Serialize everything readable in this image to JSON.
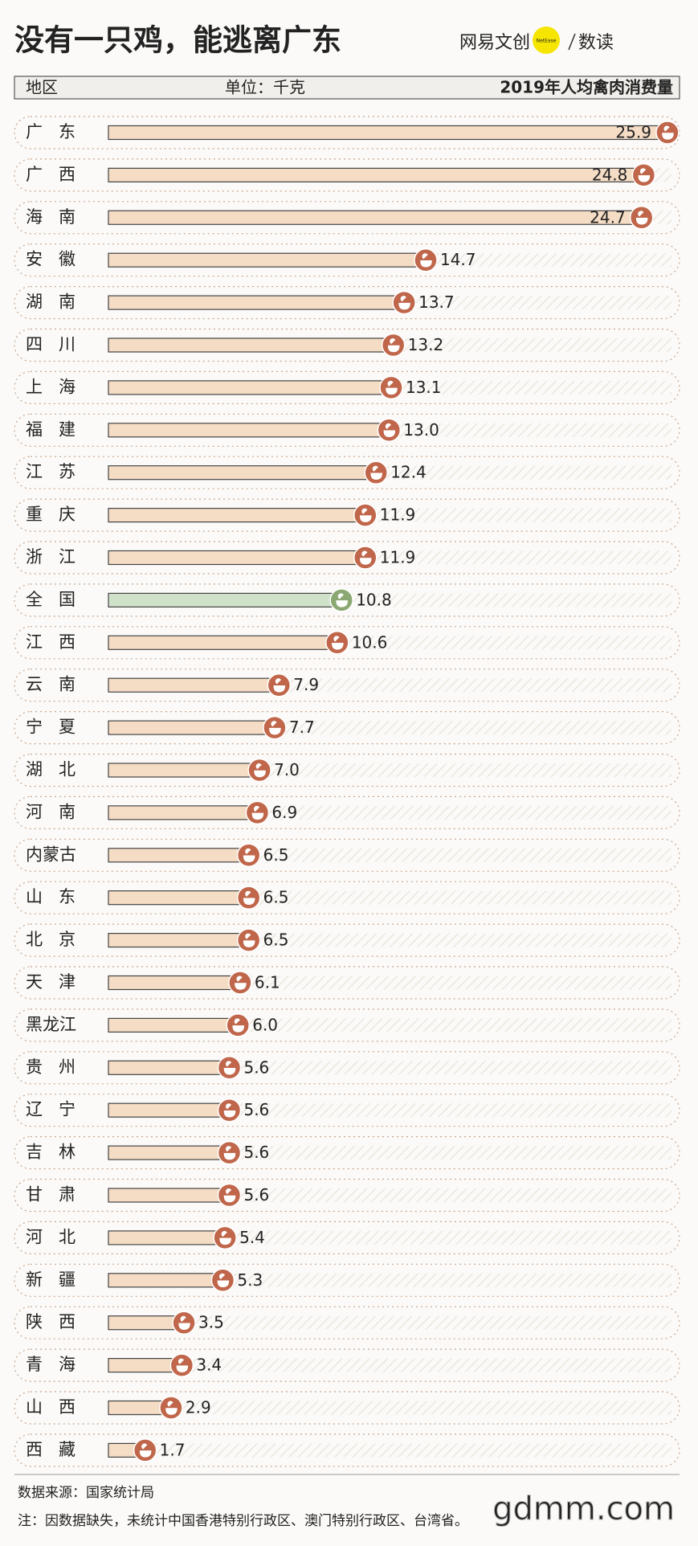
{
  "chart_data": {
    "type": "bar",
    "orientation": "horizontal",
    "title": "没有一只鸡，能逃离广东",
    "category_header": "地区",
    "unit": "单位：千克",
    "value_header": "2019年人均禽肉消费量",
    "categories": [
      "广东",
      "广西",
      "海南",
      "安徽",
      "湖南",
      "四川",
      "上海",
      "福建",
      "江苏",
      "重庆",
      "浙江",
      "全国",
      "江西",
      "云南",
      "宁夏",
      "湖北",
      "河南",
      "内蒙古",
      "山东",
      "北京",
      "天津",
      "黑龙江",
      "贵州",
      "辽宁",
      "吉林",
      "甘肃",
      "河北",
      "新疆",
      "陕西",
      "青海",
      "山西",
      "西藏"
    ],
    "values": [
      25.9,
      24.8,
      24.7,
      14.7,
      13.7,
      13.2,
      13.1,
      13.0,
      12.4,
      11.9,
      11.9,
      10.8,
      10.6,
      7.9,
      7.7,
      7.0,
      6.9,
      6.5,
      6.5,
      6.5,
      6.1,
      6.0,
      5.6,
      5.6,
      5.6,
      5.6,
      5.4,
      5.3,
      3.5,
      3.4,
      2.9,
      1.7
    ],
    "value_labels": [
      "25.9",
      "24.8",
      "24.7",
      "14.7",
      "13.7",
      "13.2",
      "13.1",
      "13.0",
      "12.4",
      "11.9",
      "11.9",
      "10.8",
      "10.6",
      "7.9",
      "7.7",
      "7.0",
      "6.9",
      "6.5",
      "6.5",
      "6.5",
      "6.1",
      "6.0",
      "5.6",
      "5.6",
      "5.6",
      "5.6",
      "5.4",
      "5.3",
      "3.5",
      "3.4",
      "2.9",
      "1.7"
    ],
    "color": "#f4dcc5",
    "icon_color": "#c0664a",
    "highlight": "全国",
    "highlight_color": "#cfe2c9",
    "highlight_icon_color": "#8ba872"
  },
  "logo": {
    "brand": "网易文创",
    "badge": "NetEase",
    "section": "数读"
  },
  "source": "数据来源：国家统计局",
  "note": "注：因数据缺失，未统计中国香港特别行政区、澳门特别行政区、台湾省。",
  "watermark": "gdmm.com"
}
